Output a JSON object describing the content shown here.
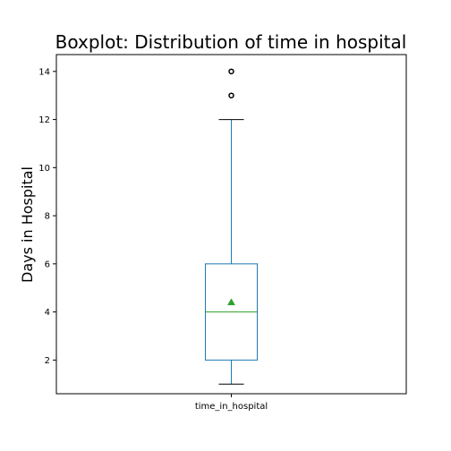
{
  "chart_data": {
    "type": "boxplot",
    "title": "Boxplot: Distribution of time in hospital",
    "xlabel": "",
    "ylabel": "Days in Hospital",
    "categories": [
      "time_in_hospital"
    ],
    "boxes": [
      {
        "category": "time_in_hospital",
        "whisker_low": 1,
        "q1": 2,
        "median": 4,
        "q3": 6,
        "whisker_high": 12,
        "mean": 4.4,
        "outliers": [
          13,
          14
        ]
      }
    ],
    "ylim": [
      0.6,
      14.7
    ],
    "yticks": [
      2,
      4,
      6,
      8,
      10,
      12,
      14
    ],
    "grid": false,
    "colors": {
      "box": "#1f77b4",
      "median": "#2ca02c",
      "mean": "#2ca02c",
      "whisker_cap": "#000000",
      "outlier": "#000000"
    }
  }
}
